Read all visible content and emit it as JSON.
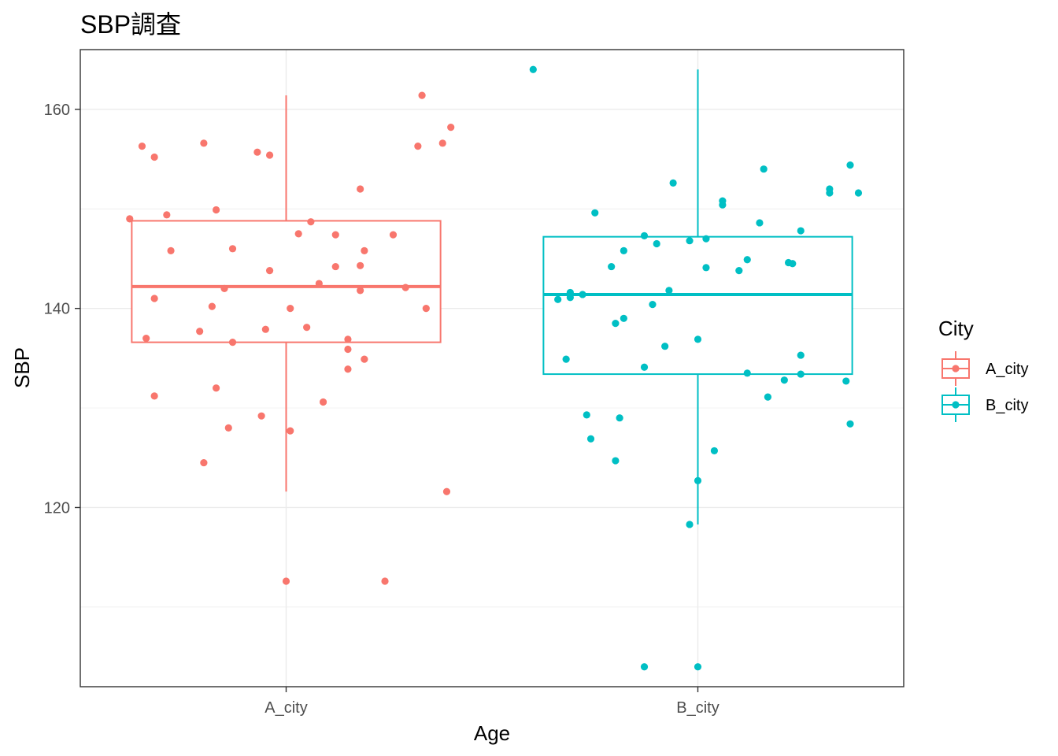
{
  "chart_data": {
    "type": "boxplot",
    "title": "SBP調査",
    "xlabel": "Age",
    "ylabel": "SBP",
    "ylim": [
      102,
      166
    ],
    "y_ticks": [
      120,
      140,
      160
    ],
    "grid": true,
    "categories": [
      "A_city",
      "B_city"
    ],
    "legend": {
      "title": "City",
      "position": "right",
      "entries": [
        "A_city",
        "B_city"
      ]
    },
    "colors": {
      "A_city": "#F8766D",
      "B_city": "#00BFC4"
    },
    "series": [
      {
        "name": "A_city",
        "box": {
          "min": 121.6,
          "q1": 136.6,
          "median": 142.2,
          "q3": 148.8,
          "max": 161.4
        },
        "points": [
          [
            -0.38,
            149.0
          ],
          [
            -0.35,
            156.3
          ],
          [
            -0.34,
            137.0
          ],
          [
            -0.32,
            131.2
          ],
          [
            -0.32,
            141.0
          ],
          [
            -0.32,
            155.2
          ],
          [
            -0.29,
            149.4
          ],
          [
            -0.28,
            145.8
          ],
          [
            -0.21,
            137.7
          ],
          [
            -0.2,
            124.5
          ],
          [
            -0.2,
            156.6
          ],
          [
            -0.18,
            140.2
          ],
          [
            -0.17,
            132.0
          ],
          [
            -0.17,
            149.9
          ],
          [
            -0.15,
            142.0
          ],
          [
            -0.14,
            128.0
          ],
          [
            -0.13,
            136.6
          ],
          [
            -0.13,
            146.0
          ],
          [
            -0.07,
            155.7
          ],
          [
            -0.06,
            129.2
          ],
          [
            -0.05,
            137.9
          ],
          [
            -0.04,
            143.8
          ],
          [
            -0.04,
            155.4
          ],
          [
            0.0,
            112.6
          ],
          [
            0.01,
            127.7
          ],
          [
            0.01,
            140.0
          ],
          [
            0.03,
            147.5
          ],
          [
            0.05,
            138.1
          ],
          [
            0.06,
            148.7
          ],
          [
            0.08,
            142.5
          ],
          [
            0.09,
            130.6
          ],
          [
            0.12,
            144.2
          ],
          [
            0.12,
            147.4
          ],
          [
            0.15,
            133.9
          ],
          [
            0.15,
            135.9
          ],
          [
            0.15,
            136.9
          ],
          [
            0.18,
            141.8
          ],
          [
            0.18,
            144.3
          ],
          [
            0.18,
            152.0
          ],
          [
            0.19,
            134.9
          ],
          [
            0.19,
            145.8
          ],
          [
            0.24,
            112.6
          ],
          [
            0.26,
            147.4
          ],
          [
            0.29,
            142.1
          ],
          [
            0.32,
            156.3
          ],
          [
            0.33,
            161.4
          ],
          [
            0.34,
            140.0
          ],
          [
            0.38,
            156.6
          ],
          [
            0.39,
            121.6
          ],
          [
            0.4,
            158.2
          ]
        ]
      },
      {
        "name": "B_city",
        "box": {
          "min": 118.3,
          "q1": 133.4,
          "median": 141.4,
          "q3": 147.2,
          "max": 164.0
        },
        "points": [
          [
            -0.4,
            164.0
          ],
          [
            -0.34,
            140.9
          ],
          [
            -0.32,
            134.9
          ],
          [
            -0.31,
            141.1
          ],
          [
            -0.31,
            141.6
          ],
          [
            -0.28,
            141.4
          ],
          [
            -0.27,
            129.3
          ],
          [
            -0.26,
            126.9
          ],
          [
            -0.25,
            149.6
          ],
          [
            -0.21,
            144.2
          ],
          [
            -0.2,
            138.5
          ],
          [
            -0.2,
            124.7
          ],
          [
            -0.19,
            129.0
          ],
          [
            -0.18,
            139.0
          ],
          [
            -0.18,
            145.8
          ],
          [
            -0.13,
            104.0
          ],
          [
            -0.13,
            134.1
          ],
          [
            -0.13,
            147.3
          ],
          [
            -0.11,
            140.4
          ],
          [
            -0.1,
            146.5
          ],
          [
            -0.08,
            136.2
          ],
          [
            -0.07,
            141.8
          ],
          [
            -0.06,
            152.6
          ],
          [
            -0.02,
            118.3
          ],
          [
            -0.02,
            146.8
          ],
          [
            0.0,
            104.0
          ],
          [
            0.0,
            122.7
          ],
          [
            0.0,
            136.9
          ],
          [
            0.02,
            144.1
          ],
          [
            0.02,
            147.0
          ],
          [
            0.04,
            125.7
          ],
          [
            0.06,
            150.4
          ],
          [
            0.06,
            150.8
          ],
          [
            0.1,
            143.8
          ],
          [
            0.12,
            144.9
          ],
          [
            0.12,
            133.5
          ],
          [
            0.15,
            148.6
          ],
          [
            0.16,
            154.0
          ],
          [
            0.17,
            131.1
          ],
          [
            0.21,
            132.8
          ],
          [
            0.22,
            144.6
          ],
          [
            0.23,
            144.5
          ],
          [
            0.25,
            133.4
          ],
          [
            0.25,
            135.3
          ],
          [
            0.25,
            147.8
          ],
          [
            0.32,
            152.0
          ],
          [
            0.32,
            151.6
          ],
          [
            0.36,
            132.7
          ],
          [
            0.37,
            154.4
          ],
          [
            0.37,
            128.4
          ],
          [
            0.39,
            151.6
          ]
        ]
      }
    ]
  }
}
